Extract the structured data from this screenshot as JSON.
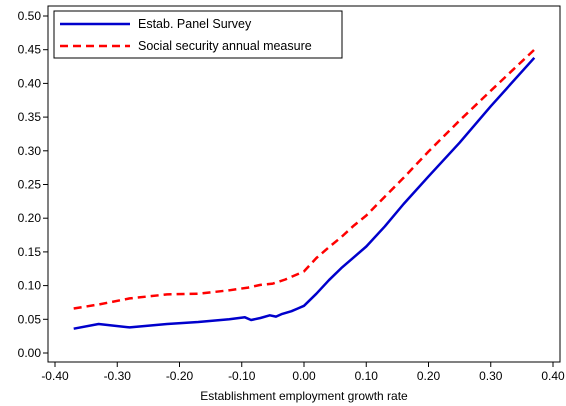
{
  "chart_data": {
    "type": "line",
    "title": "",
    "xlabel": "Establishment employment growth rate",
    "ylabel": "",
    "xlim": [
      -0.4,
      0.4
    ],
    "ylim": [
      0.0,
      0.5
    ],
    "xticks": [
      -0.4,
      -0.3,
      -0.2,
      -0.1,
      0.0,
      0.1,
      0.2,
      0.3,
      0.4
    ],
    "xtick_labels": [
      "-0.40",
      "-0.30",
      "-0.20",
      "-0.10",
      "0.00",
      "0.10",
      "0.20",
      "0.30",
      "0.40"
    ],
    "yticks": [
      0.0,
      0.05,
      0.1,
      0.15,
      0.2,
      0.25,
      0.3,
      0.35,
      0.4,
      0.45,
      0.5
    ],
    "ytick_labels": [
      "0.00",
      "0.05",
      "0.10",
      "0.15",
      "0.20",
      "0.25",
      "0.30",
      "0.35",
      "0.40",
      "0.45",
      "0.50"
    ],
    "grid": false,
    "legend_position": "top-left",
    "series": [
      {
        "name": "Estab. Panel Survey",
        "color": "#0000cc",
        "style": "solid",
        "x": [
          -0.37,
          -0.33,
          -0.28,
          -0.22,
          -0.17,
          -0.12,
          -0.095,
          -0.085,
          -0.07,
          -0.055,
          -0.045,
          -0.035,
          -0.02,
          -0.01,
          0.0,
          0.02,
          0.04,
          0.06,
          0.08,
          0.1,
          0.13,
          0.16,
          0.2,
          0.25,
          0.3,
          0.37
        ],
        "y": [
          0.036,
          0.043,
          0.038,
          0.043,
          0.046,
          0.05,
          0.053,
          0.049,
          0.052,
          0.056,
          0.054,
          0.058,
          0.062,
          0.066,
          0.07,
          0.088,
          0.108,
          0.126,
          0.142,
          0.158,
          0.188,
          0.221,
          0.262,
          0.312,
          0.366,
          0.438
        ]
      },
      {
        "name": "Social security annual measure",
        "color": "#ff0000",
        "style": "dashed",
        "x": [
          -0.37,
          -0.33,
          -0.28,
          -0.22,
          -0.17,
          -0.12,
          -0.09,
          -0.07,
          -0.05,
          -0.03,
          0.0,
          0.02,
          0.04,
          0.06,
          0.08,
          0.1,
          0.13,
          0.16,
          0.2,
          0.25,
          0.3,
          0.37
        ],
        "y": [
          0.066,
          0.072,
          0.081,
          0.087,
          0.088,
          0.093,
          0.097,
          0.101,
          0.103,
          0.109,
          0.121,
          0.141,
          0.157,
          0.172,
          0.189,
          0.204,
          0.232,
          0.26,
          0.299,
          0.345,
          0.389,
          0.45
        ]
      }
    ]
  }
}
